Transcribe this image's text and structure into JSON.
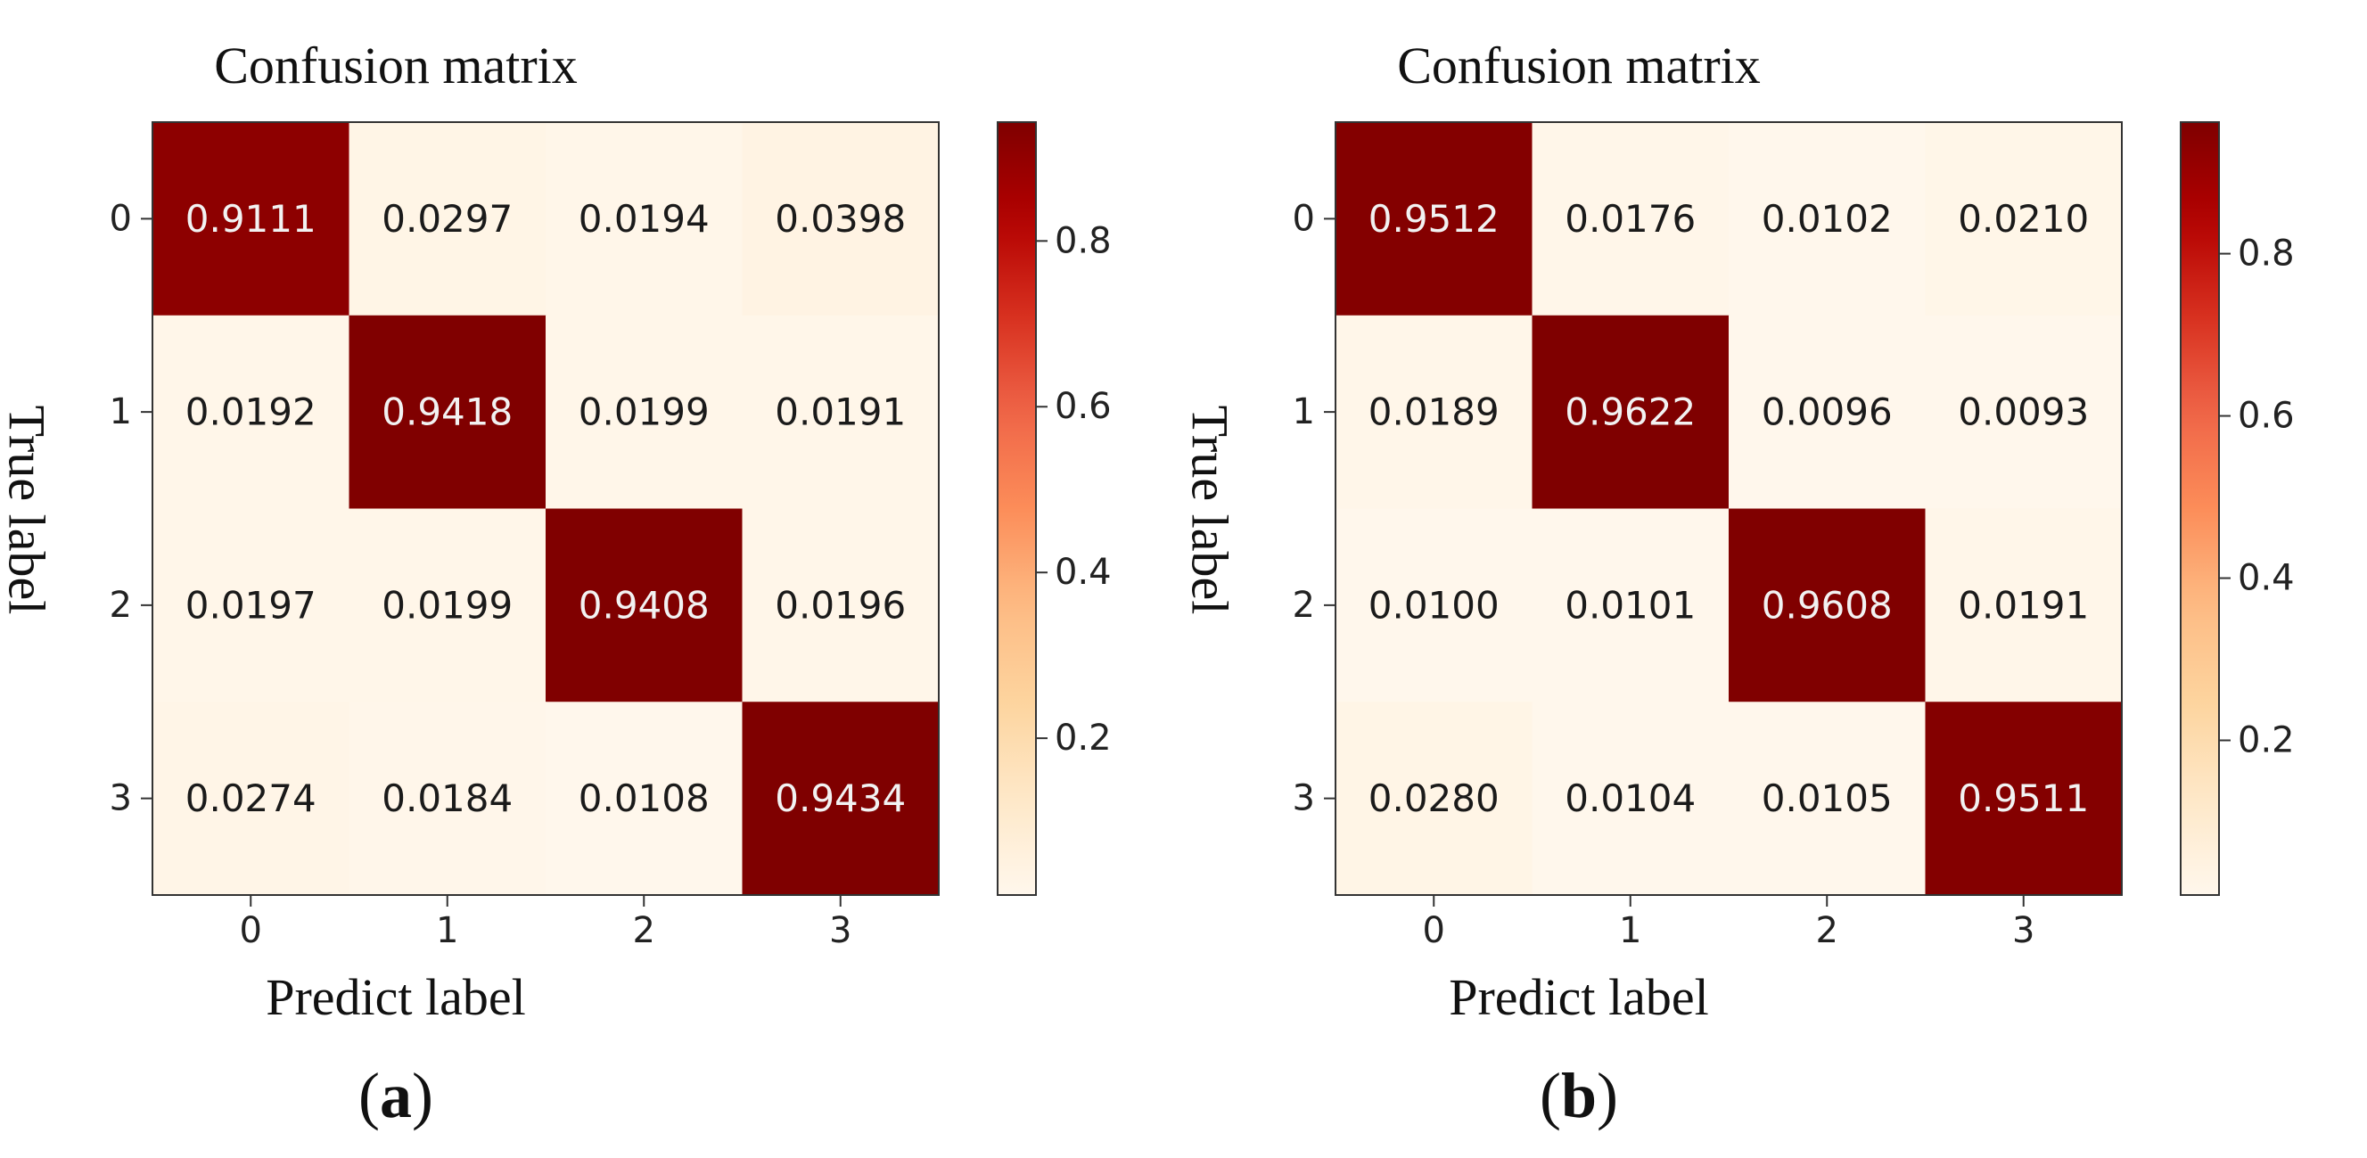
{
  "chart_data": [
    {
      "panel": "a",
      "type": "heatmap",
      "title": "Confusion matrix",
      "xlabel": "Predict label",
      "ylabel": "True label",
      "caption_label": "a",
      "x_categories": [
        "0",
        "1",
        "2",
        "3"
      ],
      "y_categories": [
        "0",
        "1",
        "2",
        "3"
      ],
      "matrix": [
        [
          0.9111,
          0.0297,
          0.0194,
          0.0398
        ],
        [
          0.0192,
          0.9418,
          0.0199,
          0.0191
        ],
        [
          0.0197,
          0.0199,
          0.9408,
          0.0196
        ],
        [
          0.0274,
          0.0184,
          0.0108,
          0.9434
        ]
      ],
      "matrix_labels": [
        [
          "0.9111",
          "0.0297",
          "0.0194",
          "0.0398"
        ],
        [
          "0.0192",
          "0.9418",
          "0.0199",
          "0.0191"
        ],
        [
          "0.0197",
          "0.0199",
          "0.9408",
          "0.0196"
        ],
        [
          "0.0274",
          "0.0184",
          "0.0108",
          "0.9434"
        ]
      ],
      "colorbar": {
        "ticks": [
          0.2,
          0.4,
          0.6,
          0.8
        ],
        "tick_labels": [
          "0.2",
          "0.4",
          "0.6",
          "0.8"
        ],
        "range": [
          0.0108,
          0.9434
        ]
      },
      "colormap": "OrRd",
      "text_color_light": "#f2f2f2",
      "text_color_dark": "#1a1a1a"
    },
    {
      "panel": "b",
      "type": "heatmap",
      "title": "Confusion matrix",
      "xlabel": "Predict label",
      "ylabel": "True label",
      "caption_label": "b",
      "x_categories": [
        "0",
        "1",
        "2",
        "3"
      ],
      "y_categories": [
        "0",
        "1",
        "2",
        "3"
      ],
      "matrix": [
        [
          0.9512,
          0.0176,
          0.0102,
          0.021
        ],
        [
          0.0189,
          0.9622,
          0.0096,
          0.0093
        ],
        [
          0.01,
          0.0101,
          0.9608,
          0.0191
        ],
        [
          0.028,
          0.0104,
          0.0105,
          0.9511
        ]
      ],
      "matrix_labels": [
        [
          "0.9512",
          "0.0176",
          "0.0102",
          "0.0210"
        ],
        [
          "0.0189",
          "0.9622",
          "0.0096",
          "0.0093"
        ],
        [
          "0.0100",
          "0.0101",
          "0.9608",
          "0.0191"
        ],
        [
          "0.0280",
          "0.0104",
          "0.0105",
          "0.9511"
        ]
      ],
      "colorbar": {
        "ticks": [
          0.2,
          0.4,
          0.6,
          0.8
        ],
        "tick_labels": [
          "0.2",
          "0.4",
          "0.6",
          "0.8"
        ],
        "range": [
          0.0093,
          0.9622
        ]
      },
      "colormap": "OrRd",
      "text_color_light": "#f2f2f2",
      "text_color_dark": "#1a1a1a"
    }
  ],
  "captions": {
    "a": {
      "open": "(",
      "label": "a",
      "close": ")"
    },
    "b": {
      "open": "(",
      "label": "b",
      "close": ")"
    }
  }
}
